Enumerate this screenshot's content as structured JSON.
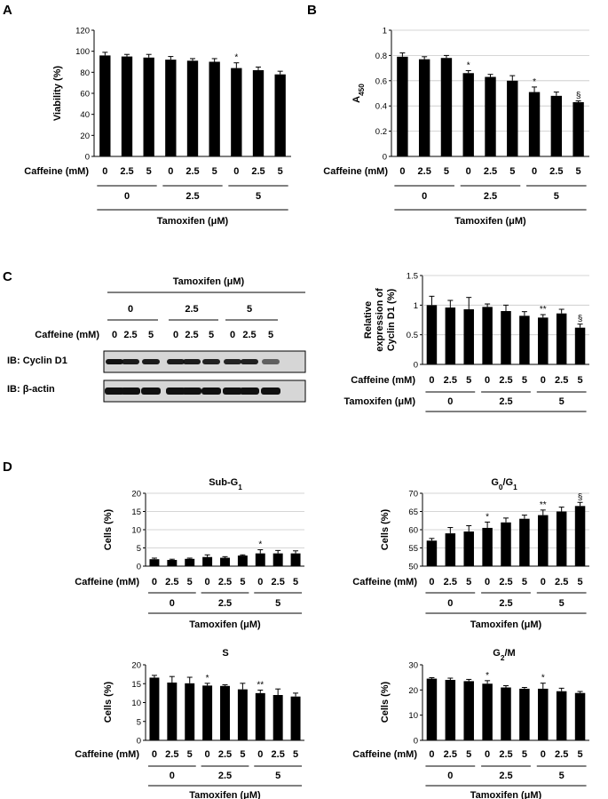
{
  "panels": {
    "A": "A",
    "B": "B",
    "C": "C",
    "D": "D"
  },
  "labels": {
    "caffeine": "Caffeine (mM)",
    "tamoxifen": "Tamoxifen (μM)",
    "caffeine_levels": [
      "0",
      "2.5",
      "5"
    ],
    "tamoxifen_levels": [
      "0",
      "2.5",
      "5"
    ]
  },
  "blot": {
    "title": "Tamoxifen (μM)",
    "row1": "IB: Cyclin D1",
    "row2": "IB: β-actin",
    "cyclin_band_intensity": [
      1.0,
      0.95,
      0.95,
      0.95,
      0.95,
      0.92,
      0.9,
      0.92,
      0.6
    ],
    "actin_band_intensity": [
      1,
      1,
      1,
      1,
      1,
      1,
      1,
      1,
      1
    ]
  },
  "chart_data": [
    {
      "id": "A",
      "type": "bar",
      "title": "",
      "ylabel": "Viability (%)",
      "ylim": [
        0,
        120
      ],
      "yticks": [
        0,
        20,
        40,
        60,
        80,
        100,
        120
      ],
      "tick_labels": [
        "0",
        "20",
        "40",
        "60",
        "80",
        "100",
        "120"
      ],
      "values": [
        96,
        95,
        94,
        92,
        91,
        90,
        84,
        82,
        78
      ],
      "errors": [
        3,
        2,
        3,
        3,
        2,
        3,
        5,
        3,
        3
      ],
      "marks": [
        "",
        "",
        "",
        "",
        "",
        "",
        "*",
        "",
        ""
      ]
    },
    {
      "id": "B",
      "type": "bar",
      "title": "",
      "ylabel": "A450",
      "ylim": [
        0,
        1
      ],
      "yticks": [
        0,
        0.2,
        0.4,
        0.6,
        0.8,
        1
      ],
      "tick_labels": [
        "0",
        "0.2",
        "0.4",
        "0.6",
        "0.8",
        "1"
      ],
      "values": [
        0.79,
        0.77,
        0.78,
        0.66,
        0.63,
        0.6,
        0.51,
        0.48,
        0.43
      ],
      "errors": [
        0.03,
        0.02,
        0.02,
        0.02,
        0.02,
        0.04,
        0.04,
        0.03,
        0.01
      ],
      "marks": [
        "",
        "",
        "",
        "*",
        "",
        "",
        "*",
        "",
        "§"
      ]
    },
    {
      "id": "C",
      "type": "bar",
      "title": "",
      "ylabel": "Relative expression of Cyclin D1 (%)",
      "ylim": [
        0,
        1.5
      ],
      "yticks": [
        0,
        0.5,
        1,
        1.5
      ],
      "tick_labels": [
        "0",
        "0.5",
        "1",
        "1.5"
      ],
      "values": [
        1.0,
        0.96,
        0.93,
        0.97,
        0.9,
        0.82,
        0.79,
        0.86,
        0.62
      ],
      "errors": [
        0.15,
        0.12,
        0.2,
        0.05,
        0.1,
        0.07,
        0.05,
        0.07,
        0.06
      ],
      "marks": [
        "",
        "",
        "",
        "",
        "",
        "",
        "**",
        "",
        "§"
      ]
    },
    {
      "id": "D-SubG1",
      "type": "bar",
      "title": "Sub-G1",
      "ylabel": "Cells (%)",
      "ylim": [
        0,
        20
      ],
      "yticks": [
        0,
        5,
        10,
        15,
        20
      ],
      "tick_labels": [
        "0",
        "5",
        "10",
        "15",
        "20"
      ],
      "values": [
        1.9,
        1.7,
        2.0,
        2.5,
        2.3,
        2.9,
        3.5,
        3.5,
        3.5
      ],
      "errors": [
        0.3,
        0.2,
        0.2,
        0.6,
        0.3,
        0.2,
        1.0,
        0.8,
        0.7
      ],
      "marks": [
        "",
        "",
        "",
        "",
        "",
        "",
        "*",
        "",
        ""
      ]
    },
    {
      "id": "D-G0G1",
      "type": "bar",
      "title": "G0/G1",
      "ylabel": "Cells (%)",
      "ylim": [
        50,
        70
      ],
      "yticks": [
        50,
        55,
        60,
        65,
        70
      ],
      "tick_labels": [
        "50",
        "55",
        "60",
        "65",
        "70"
      ],
      "values": [
        57,
        59,
        59.5,
        60.5,
        62,
        63,
        64,
        65,
        66.5
      ],
      "errors": [
        0.6,
        1.6,
        1.6,
        1.6,
        1.2,
        1.0,
        1.4,
        1.2,
        1.0
      ],
      "marks": [
        "",
        "",
        "",
        "*",
        "",
        "",
        "**",
        "",
        "§"
      ]
    },
    {
      "id": "D-S",
      "type": "bar",
      "title": "S",
      "ylabel": "Cells (%)",
      "ylim": [
        0,
        20
      ],
      "yticks": [
        0,
        5,
        10,
        15,
        20
      ],
      "tick_labels": [
        "0",
        "5",
        "10",
        "15",
        "20"
      ],
      "values": [
        16.6,
        15.3,
        15.1,
        14.5,
        14.4,
        13.5,
        12.5,
        12.0,
        11.6
      ],
      "errors": [
        0.6,
        1.6,
        1.6,
        0.6,
        0.3,
        1.6,
        0.8,
        1.6,
        0.9
      ],
      "marks": [
        "",
        "",
        "",
        "*",
        "",
        "",
        "**",
        "",
        ""
      ]
    },
    {
      "id": "D-G2M",
      "type": "bar",
      "title": "G2/M",
      "ylabel": "Cells (%)",
      "ylim": [
        0,
        30
      ],
      "yticks": [
        0,
        10,
        20,
        30
      ],
      "tick_labels": [
        "0",
        "10",
        "20",
        "30"
      ],
      "values": [
        24.5,
        24,
        23.5,
        22.5,
        21,
        20.5,
        20.5,
        19.5,
        18.8
      ],
      "errors": [
        0.4,
        0.7,
        0.7,
        1.2,
        0.7,
        0.5,
        2.2,
        1.2,
        0.6
      ],
      "marks": [
        "",
        "",
        "",
        "*",
        "",
        "",
        "*",
        "",
        ""
      ]
    }
  ]
}
